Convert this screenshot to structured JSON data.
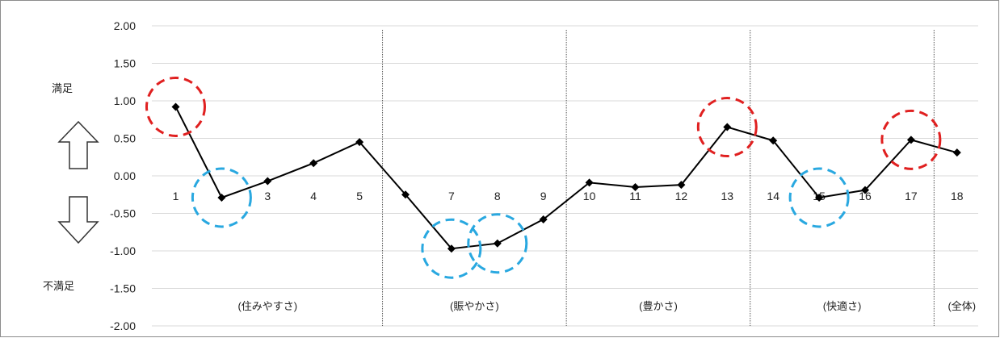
{
  "chart_data": {
    "type": "line",
    "categories": [
      "1",
      "",
      "3",
      "4",
      "5",
      "",
      "7",
      "8",
      "9",
      "10",
      "11",
      "12",
      "13",
      "14",
      "15",
      "16",
      "17",
      "18"
    ],
    "x": [
      1,
      2,
      3,
      4,
      5,
      6,
      7,
      8,
      9,
      10,
      11,
      12,
      13,
      14,
      15,
      16,
      17,
      18
    ],
    "series": [
      {
        "values": [
          0.92,
          -0.29,
          -0.07,
          0.17,
          0.45,
          -0.25,
          -0.97,
          -0.9,
          -0.58,
          -0.09,
          -0.15,
          -0.12,
          0.65,
          0.47,
          -0.29,
          -0.19,
          0.48,
          0.31
        ]
      }
    ],
    "ylim": [
      -2.0,
      2.0
    ],
    "yticks": [
      "2.00",
      "1.50",
      "1.00",
      "0.50",
      "0.00",
      "-0.50",
      "-1.00",
      "-1.50",
      "-2.00"
    ],
    "grid": true,
    "group_dividers_after": [
      5.5,
      9.5,
      13.5,
      17.5
    ],
    "groups": [
      {
        "label": "(住みやすさ)",
        "from": 1,
        "to": 5
      },
      {
        "label": "(賑やかさ)",
        "from": 6,
        "to": 9
      },
      {
        "label": "(豊かさ)",
        "from": 10,
        "to": 13
      },
      {
        "label": "(快適さ)",
        "from": 14,
        "to": 17
      },
      {
        "label": "(全体)",
        "from": 18,
        "to": 18
      }
    ],
    "highlights": [
      {
        "x": 1,
        "color": "#e02020"
      },
      {
        "x": 2,
        "color": "#29a8e0"
      },
      {
        "x": 7,
        "color": "#29a8e0"
      },
      {
        "x": 8,
        "color": "#29a8e0"
      },
      {
        "x": 13,
        "color": "#e02020"
      },
      {
        "x": 15,
        "color": "#29a8e0"
      },
      {
        "x": 17,
        "color": "#e02020"
      }
    ],
    "side_labels": {
      "top": "満足",
      "bottom": "不満足"
    },
    "colors": {
      "line": "#000000",
      "grid": "#d9d9d9",
      "divider": "#555555",
      "satisfied": "#e02020",
      "dissatisfied": "#29a8e0"
    }
  }
}
